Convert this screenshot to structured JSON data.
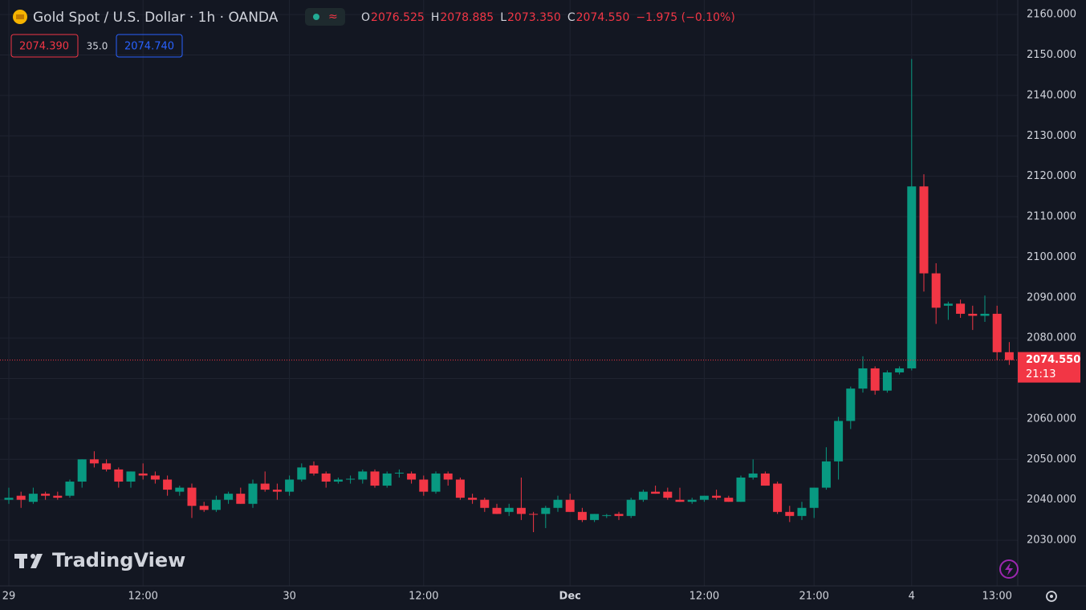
{
  "header": {
    "title": "Gold Spot / U.S. Dollar · 1h · OANDA",
    "ohlc": [
      {
        "key": "O",
        "value": "2076.525"
      },
      {
        "key": "H",
        "value": "2078.885"
      },
      {
        "key": "L",
        "value": "2073.350"
      },
      {
        "key": "C",
        "value": "2074.550"
      }
    ],
    "change": "−1.975 (−0.10%)",
    "bid": "2074.390",
    "spread": "35.0",
    "ask": "2074.740",
    "last_price": {
      "value": 2074.55,
      "label": "2074.550"
    },
    "countdown": "21:13",
    "brand": "TradingView"
  },
  "chart_data": {
    "type": "candlestick",
    "up_color": "#089981",
    "down_color": "#f23645",
    "categories": [
      "29",
      null,
      null,
      null,
      null,
      null,
      null,
      null,
      null,
      null,
      null,
      "12:00",
      null,
      null,
      null,
      null,
      null,
      null,
      null,
      null,
      null,
      null,
      null,
      "30",
      null,
      null,
      null,
      null,
      null,
      null,
      null,
      null,
      null,
      null,
      "12:00",
      null,
      null,
      null,
      null,
      null,
      null,
      null,
      null,
      null,
      null,
      null,
      "Dec",
      null,
      null,
      null,
      null,
      null,
      null,
      null,
      null,
      null,
      null,
      "12:00",
      null,
      null,
      null,
      null,
      null,
      null,
      null,
      null,
      "21:00",
      null,
      null,
      null,
      null,
      null,
      null,
      null,
      "4",
      null,
      null,
      null,
      null,
      null,
      null,
      "13:00",
      null
    ],
    "open": [
      2040,
      2041,
      2039.5,
      2041.5,
      2041,
      2041,
      2044.5,
      2050,
      2049,
      2047.5,
      2044.5,
      2046.5,
      2046,
      2045,
      2042,
      2043,
      2038.5,
      2037.5,
      2040,
      2041.5,
      2039,
      2044,
      2042.5,
      2042,
      2045,
      2048.5,
      2046.5,
      2044.5,
      2045,
      2045,
      2047,
      2043.5,
      2046.5,
      2046.5,
      2045,
      2042,
      2046.5,
      2045,
      2040.5,
      2040,
      2038,
      2037,
      2038,
      2036.5,
      2036.5,
      2038,
      2040,
      2037,
      2035,
      2036,
      2036.5,
      2036,
      2040,
      2042,
      2042,
      2040,
      2039.5,
      2040,
      2041,
      2040.5,
      2039.5,
      2045.5,
      2046.5,
      2044,
      2037,
      2036,
      2038,
      2043,
      2049.5,
      2059.5,
      2067.5,
      2072.5,
      2067,
      2071.5,
      2072.5,
      2117.5,
      2096,
      2088,
      2088.5,
      2086,
      2085.5,
      2086,
      2076.5
    ],
    "high": [
      2043,
      2042,
      2043,
      2042,
      2042,
      2045,
      2050,
      2052,
      2050,
      2048,
      2047,
      2049,
      2047,
      2046,
      2043.5,
      2044,
      2039.5,
      2041,
      2042,
      2043,
      2045,
      2047,
      2044,
      2046,
      2049,
      2049.5,
      2047,
      2045.5,
      2046,
      2047.5,
      2047.5,
      2047,
      2047.5,
      2047,
      2046,
      2047,
      2047,
      2045.5,
      2041.5,
      2040.5,
      2039,
      2039,
      2045.5,
      2037,
      2038.5,
      2041,
      2041.5,
      2038,
      2036.5,
      2036.5,
      2037,
      2040.5,
      2042.5,
      2043.5,
      2043,
      2043,
      2040.5,
      2041,
      2042.5,
      2041,
      2046,
      2050,
      2047,
      2044.5,
      2038.5,
      2039.5,
      2043,
      2053,
      2060.5,
      2068,
      2075.5,
      2073,
      2072,
      2073,
      2149,
      2120.5,
      2098.5,
      2089,
      2089.5,
      2088,
      2090.5,
      2088,
      2079
    ],
    "low": [
      2039,
      2038,
      2039,
      2040,
      2040,
      2040.5,
      2043,
      2048,
      2047,
      2043,
      2043,
      2045,
      2044,
      2041,
      2041,
      2035.5,
      2037,
      2037,
      2039,
      2039,
      2038,
      2042,
      2040,
      2041,
      2044.5,
      2046,
      2043,
      2044,
      2044,
      2044,
      2043,
      2043,
      2045.5,
      2044,
      2041,
      2041.5,
      2043.5,
      2040,
      2039,
      2037,
      2036.5,
      2036,
      2035,
      2032,
      2033,
      2037,
      2037,
      2034.5,
      2034.5,
      2035.5,
      2035,
      2035.5,
      2039.5,
      2041.5,
      2040,
      2039.5,
      2039,
      2039.5,
      2040,
      2039.5,
      2039.5,
      2045,
      2043.5,
      2036.5,
      2034.5,
      2035,
      2035.5,
      2042.5,
      2045,
      2057.5,
      2066.5,
      2066,
      2066.5,
      2071,
      2072,
      2091.5,
      2083.5,
      2084.5,
      2085,
      2082,
      2084,
      2074.5,
      2073.35
    ],
    "close": [
      2040.5,
      2040,
      2041.5,
      2041,
      2040.5,
      2044.5,
      2050,
      2049,
      2047.5,
      2044.5,
      2047,
      2046,
      2045,
      2042.5,
      2043,
      2038.5,
      2037.5,
      2040,
      2041.5,
      2039,
      2044,
      2042.5,
      2042,
      2045,
      2048,
      2046.5,
      2044.5,
      2045,
      2045.2,
      2047,
      2043.5,
      2046.5,
      2046.7,
      2045,
      2042,
      2046.5,
      2045,
      2040.5,
      2040,
      2038,
      2036.5,
      2038,
      2036.5,
      2036.4,
      2038,
      2040,
      2037,
      2035,
      2036.5,
      2036.2,
      2036,
      2040,
      2042,
      2041.5,
      2040.5,
      2039.5,
      2040,
      2041,
      2040.5,
      2039.5,
      2045.5,
      2046.5,
      2043.5,
      2037,
      2036,
      2038,
      2043,
      2049.5,
      2059.5,
      2067.5,
      2072.5,
      2067,
      2071.5,
      2072.5,
      2117.5,
      2096,
      2087.5,
      2088.5,
      2086,
      2085.5,
      2086,
      2076.5,
      2074.55
    ],
    "ylim": [
      2018.7,
      2163.6
    ],
    "yticks": [
      {
        "value": 2030,
        "label": "2030.000"
      },
      {
        "value": 2040,
        "label": "2040.000"
      },
      {
        "value": 2050,
        "label": "2050.000"
      },
      {
        "value": 2060,
        "label": "2060.000"
      },
      {
        "value": 2070,
        "label": "2070.000"
      },
      {
        "value": 2080,
        "label": "2080.000"
      },
      {
        "value": 2090,
        "label": "2090.000"
      },
      {
        "value": 2100,
        "label": "2100.000"
      },
      {
        "value": 2110,
        "label": "2110.000"
      },
      {
        "value": 2120,
        "label": "2120.000"
      },
      {
        "value": 2130,
        "label": "2130.000"
      },
      {
        "value": 2140,
        "label": "2140.000"
      },
      {
        "value": 2150,
        "label": "2150.000"
      },
      {
        "value": 2160,
        "label": "2160.000"
      }
    ],
    "grid": true
  }
}
